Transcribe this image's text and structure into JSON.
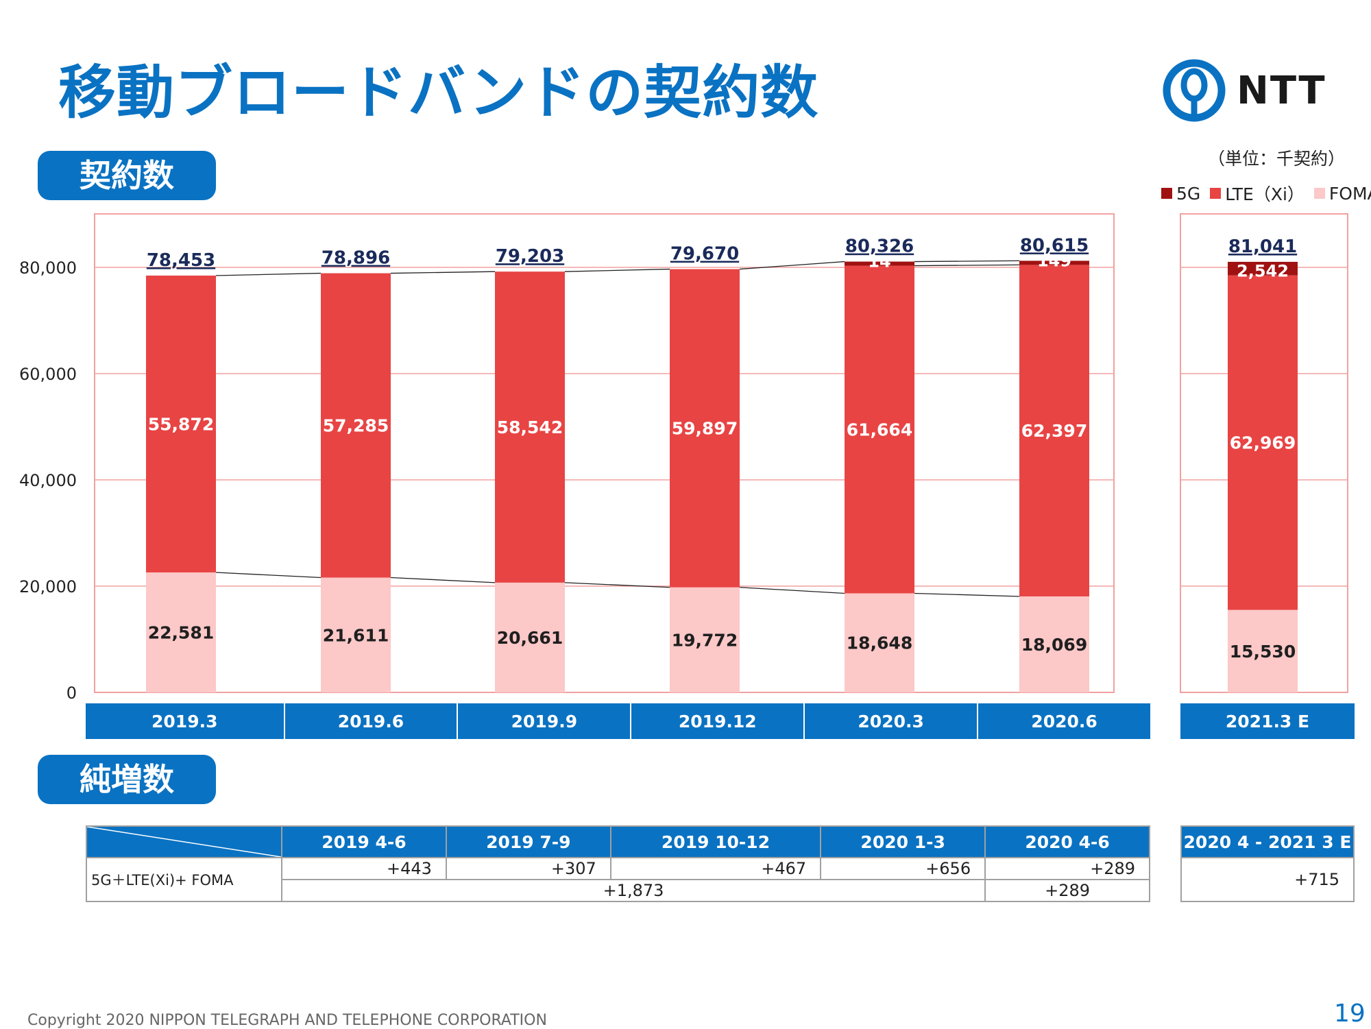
{
  "page": {
    "title": "移動ブロードバンドの契約数",
    "logo_text": "NTT",
    "section1": "契約数",
    "section2": "純増数",
    "unit": "（単位：千契約）",
    "footer": "Copyright 2020 NIPPON TELEGRAPH AND TELEPHONE CORPORATION",
    "page_number": "19"
  },
  "legend": [
    {
      "label": "5G",
      "color": "#a01212"
    },
    {
      "label": "LTE（Xi）",
      "color": "#e84444"
    },
    {
      "label": "FOMA",
      "color": "#fcc8c8"
    }
  ],
  "chart_data": {
    "type": "bar",
    "stacked": true,
    "categories": [
      "2019.3",
      "2019.6",
      "2019.9",
      "2019.12",
      "2020.3",
      "2020.6",
      "2021.3 E"
    ],
    "series": [
      {
        "name": "FOMA",
        "color": "#fcc8c8",
        "values": [
          22581,
          21611,
          20661,
          19772,
          18648,
          18069,
          15530
        ]
      },
      {
        "name": "LTE（Xi）",
        "color": "#e84444",
        "values": [
          55872,
          57285,
          58542,
          59897,
          61664,
          62397,
          62969
        ]
      },
      {
        "name": "5G",
        "color": "#a01212",
        "values": [
          null,
          null,
          null,
          null,
          14,
          149,
          2542
        ]
      }
    ],
    "totals": [
      78453,
      78896,
      79203,
      79670,
      80326,
      80615,
      81041
    ],
    "value_labels": {
      "FOMA": [
        "22,581",
        "21,611",
        "20,661",
        "19,772",
        "18,648",
        "18,069",
        "15,530"
      ],
      "LTE": [
        "55,872",
        "57,285",
        "58,542",
        "59,897",
        "61,664",
        "62,397",
        "62,969"
      ],
      "5G": [
        "",
        "",
        "",
        "",
        "14",
        "149",
        "2,542"
      ],
      "totals": [
        "78,453",
        "78,896",
        "79,203",
        "79,670",
        "80,326",
        "80,615",
        "81,041"
      ]
    },
    "y_ticks": [
      "0",
      "20,000",
      "40,000",
      "60,000",
      "80,000"
    ],
    "ylim": [
      0,
      90000
    ],
    "grid": true
  },
  "increase_table": {
    "periods": [
      "2019 4-6",
      "2019 7-9",
      "2019 10-12",
      "2020 1-3",
      "2020 4-6"
    ],
    "forecast_header": "2020 4 - 2021 3 E",
    "row_label": "5G＋LTE(Xi)+ FOMA",
    "values": [
      "+443",
      "+307",
      "+467",
      "+656",
      "+289"
    ],
    "subtotal_fy2019": "+1,873",
    "subtotal_fy2020": "+289",
    "forecast_value": "+715"
  }
}
